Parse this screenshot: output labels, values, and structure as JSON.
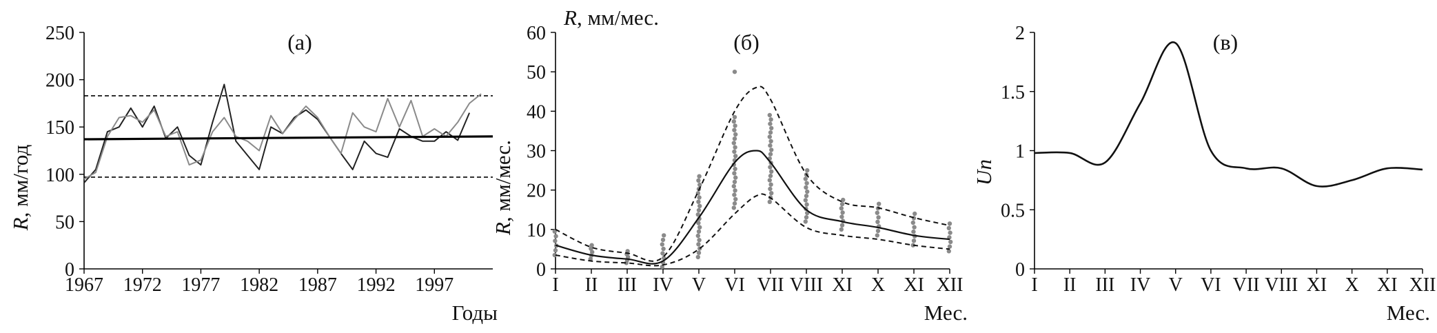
{
  "chart_data": [
    {
      "panel_label": "(а)",
      "type": "line",
      "xlabel": "Годы",
      "ylabel_symbol": "R",
      "ylabel_rest": ", мм/год",
      "xlim": [
        1967,
        2002
      ],
      "ylim": [
        0,
        250
      ],
      "xticks": [
        1967,
        1972,
        1977,
        1982,
        1987,
        1992,
        1997
      ],
      "yticks": [
        0,
        50,
        100,
        150,
        200,
        250
      ],
      "series": [
        {
          "style": "dark",
          "color": "#222222",
          "x": [
            1967,
            1968,
            1969,
            1970,
            1971,
            1972,
            1973,
            1974,
            1975,
            1976,
            1977,
            1978,
            1979,
            1980,
            1981,
            1982,
            1983,
            1984,
            1985,
            1986,
            1987,
            1988,
            1989,
            1990,
            1991,
            1992,
            1993,
            1994,
            1995,
            1996,
            1997,
            1998,
            1999,
            2000
          ],
          "values": [
            91,
            105,
            145,
            150,
            170,
            150,
            172,
            138,
            150,
            120,
            110,
            155,
            195,
            135,
            120,
            105,
            150,
            143,
            160,
            168,
            158,
            140,
            122,
            105,
            135,
            122,
            118,
            148,
            140,
            135,
            135,
            145,
            136,
            165
          ]
        },
        {
          "style": "gray",
          "color": "#8a8a8a",
          "x": [
            1967,
            1968,
            1969,
            1970,
            1971,
            1972,
            1973,
            1974,
            1975,
            1976,
            1977,
            1978,
            1979,
            1980,
            1981,
            1982,
            1983,
            1984,
            1985,
            1986,
            1987,
            1988,
            1989,
            1990,
            1991,
            1992,
            1993,
            1994,
            1995,
            1996,
            1997,
            1998,
            1999,
            2000,
            2001
          ],
          "values": [
            95,
            102,
            140,
            160,
            162,
            155,
            168,
            140,
            145,
            110,
            115,
            145,
            160,
            140,
            135,
            125,
            162,
            143,
            158,
            172,
            160,
            140,
            122,
            165,
            150,
            145,
            180,
            150,
            178,
            140,
            148,
            140,
            155,
            175,
            185
          ]
        },
        {
          "style": "trend",
          "color": "#000000",
          "x": [
            1967,
            2002
          ],
          "values": [
            137,
            140
          ]
        }
      ],
      "reference_lines": [
        183,
        97
      ]
    },
    {
      "panel_label": "(б)",
      "type": "line",
      "xlabel": "Мес.",
      "ylabel_symbol": "R",
      "ylabel_rest": ", мм/мес.",
      "top_label_symbol": "R",
      "top_label_rest": ", мм/мес.",
      "categories": [
        "I",
        "II",
        "III",
        "IV",
        "V",
        "VI",
        "VII",
        "VIII",
        "XI",
        "X",
        "XI",
        "XII"
      ],
      "ylim": [
        0,
        60
      ],
      "yticks": [
        0,
        10,
        20,
        30,
        40,
        50,
        60
      ],
      "series": [
        {
          "style": "mean",
          "color": "#111111",
          "x": [
            1,
            2,
            3,
            4,
            5,
            6,
            6.6,
            7,
            8,
            9,
            10,
            11,
            12
          ],
          "values": [
            6,
            3.5,
            2.5,
            2,
            13,
            27,
            30,
            27,
            15,
            12,
            10.5,
            8.5,
            7.5
          ]
        },
        {
          "style": "upper",
          "color": "#111111",
          "x": [
            1,
            2,
            3,
            4,
            5,
            6,
            6.6,
            7,
            8,
            9,
            10,
            11,
            12
          ],
          "values": [
            10,
            5.5,
            4,
            3,
            20,
            40,
            46,
            43,
            24,
            17,
            15.5,
            13,
            11
          ]
        },
        {
          "style": "lower",
          "color": "#111111",
          "x": [
            1,
            2,
            3,
            4,
            5,
            6,
            6.6,
            7,
            8,
            9,
            10,
            11,
            12
          ],
          "values": [
            3.5,
            2,
            1.5,
            1,
            5,
            14,
            18.5,
            18,
            10.5,
            8.5,
            7.5,
            6,
            5
          ]
        }
      ],
      "scatter_color": "#8a8a8a",
      "scatter_ranges": [
        {
          "x": 1,
          "min": 3.5,
          "max": 9.5
        },
        {
          "x": 2,
          "min": 2.5,
          "max": 6
        },
        {
          "x": 3,
          "min": 1.5,
          "max": 4.5
        },
        {
          "x": 4,
          "min": 0.5,
          "max": 8.5
        },
        {
          "x": 5,
          "min": 3,
          "max": 23.5
        },
        {
          "x": 6,
          "min": 15.5,
          "max": 38.5
        },
        {
          "x": 7,
          "min": 17,
          "max": 39
        },
        {
          "x": 8,
          "min": 12,
          "max": 25
        },
        {
          "x": 9,
          "min": 10,
          "max": 17.5
        },
        {
          "x": 10,
          "min": 8.5,
          "max": 16.5
        },
        {
          "x": 11,
          "min": 6,
          "max": 14
        },
        {
          "x": 12,
          "min": 4.5,
          "max": 11.5
        }
      ],
      "outliers": [
        {
          "x": 6,
          "y": 50
        }
      ]
    },
    {
      "panel_label": "(в)",
      "type": "line",
      "xlabel": "Мес.",
      "ylabel_symbol": "Un",
      "categories": [
        "I",
        "II",
        "III",
        "IV",
        "V",
        "VI",
        "VII",
        "VIII",
        "XI",
        "X",
        "XI",
        "XII"
      ],
      "ylim": [
        0,
        2
      ],
      "yticks": [
        "0",
        "0.5",
        "1",
        "1.5",
        "2"
      ],
      "ytick_values": [
        0,
        0.5,
        1,
        1.5,
        2
      ],
      "series": [
        {
          "color": "#111111",
          "x": [
            1,
            2,
            3,
            4,
            5,
            6,
            7,
            8,
            9,
            10,
            11,
            12
          ],
          "values": [
            0.98,
            0.98,
            0.9,
            1.4,
            1.91,
            1.0,
            0.85,
            0.85,
            0.7,
            0.75,
            0.85,
            0.84
          ]
        }
      ]
    }
  ]
}
